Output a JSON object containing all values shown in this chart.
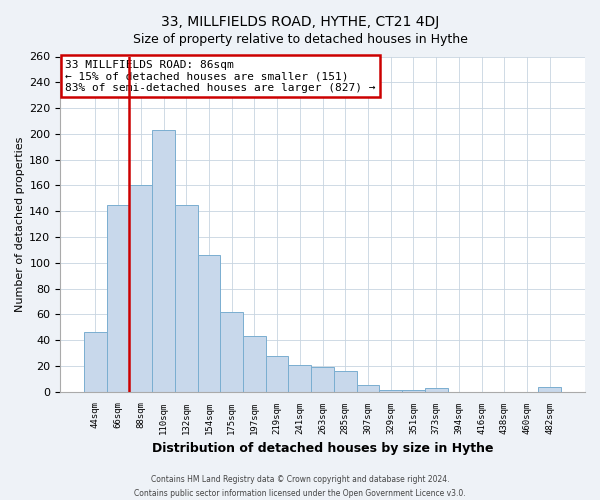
{
  "title": "33, MILLFIELDS ROAD, HYTHE, CT21 4DJ",
  "subtitle": "Size of property relative to detached houses in Hythe",
  "xlabel": "Distribution of detached houses by size in Hythe",
  "ylabel": "Number of detached properties",
  "bar_labels": [
    "44sqm",
    "66sqm",
    "88sqm",
    "110sqm",
    "132sqm",
    "154sqm",
    "175sqm",
    "197sqm",
    "219sqm",
    "241sqm",
    "263sqm",
    "285sqm",
    "307sqm",
    "329sqm",
    "351sqm",
    "373sqm",
    "394sqm",
    "416sqm",
    "438sqm",
    "460sqm",
    "482sqm"
  ],
  "bar_values": [
    46,
    145,
    160,
    203,
    145,
    106,
    62,
    43,
    28,
    21,
    19,
    16,
    5,
    1,
    1,
    3,
    0,
    0,
    0,
    0,
    4
  ],
  "bar_color": "#c8d8eb",
  "bar_edge_color": "#7aaed0",
  "highlight_bar_index": 2,
  "highlight_line_color": "#cc0000",
  "annotation_text": "33 MILLFIELDS ROAD: 86sqm\n← 15% of detached houses are smaller (151)\n83% of semi-detached houses are larger (827) →",
  "annotation_box_edge_color": "#cc0000",
  "ylim": [
    0,
    260
  ],
  "yticks": [
    0,
    20,
    40,
    60,
    80,
    100,
    120,
    140,
    160,
    180,
    200,
    220,
    240,
    260
  ],
  "footer_line1": "Contains HM Land Registry data © Crown copyright and database right 2024.",
  "footer_line2": "Contains public sector information licensed under the Open Government Licence v3.0.",
  "bg_color": "#eef2f7",
  "plot_bg_color": "#ffffff",
  "grid_color": "#c8d4e0"
}
